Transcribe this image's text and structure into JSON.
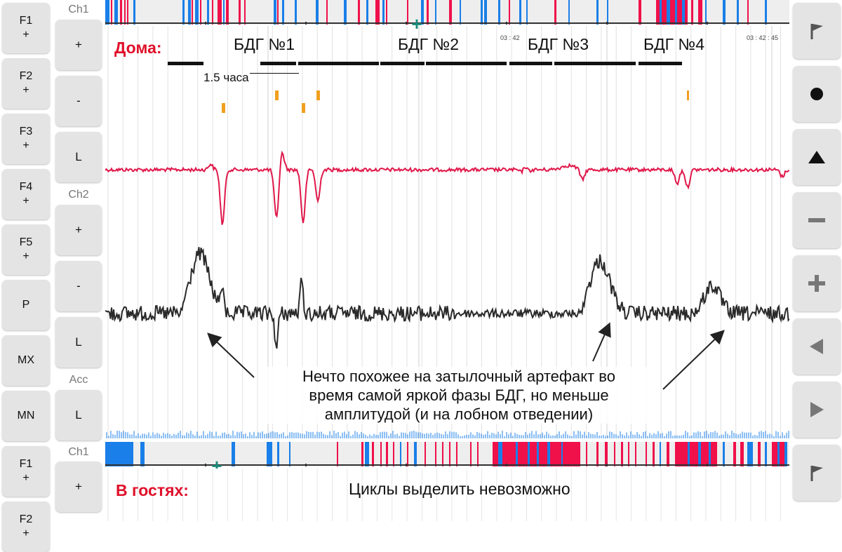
{
  "left_buttons": [
    "F1\n+",
    "F2\n+",
    "F3\n+",
    "F4\n+",
    "F5\n+",
    "P",
    "MX",
    "MN",
    "F1\n+",
    "F2\n+"
  ],
  "channels": {
    "ch1_label": "Ch1",
    "ch2_label": "Ch2",
    "acc_label": "Acc",
    "ch1b_label": "Ch1",
    "plus": "+",
    "minus": "-",
    "l": "L"
  },
  "right_buttons": [
    "flag-icon",
    "record-dot-icon",
    "triangle-up-icon",
    "minus-icon",
    "plus-icon",
    "triangle-left-icon",
    "triangle-right-icon",
    "flag-icon"
  ],
  "overlay": {
    "home_label": "Дома:",
    "bdg1": "БДГ №1",
    "bdg2": "БДГ №2",
    "bdg3": "БДГ №3",
    "bdg4": "БДГ №4",
    "duration": "1.5 часа",
    "time1": "03 : 42",
    "time2": "03 : 42 : 45",
    "annotation": "Нечто похожее на затылочный артефакт во\nвремя самой яркой фазы БДГ, но меньше\nамплитудой (и на лобном отведении)",
    "away_label": "В гостях:",
    "away_text": "Циклы выделить невозможно"
  },
  "colors": {
    "red_trace": "#e0184a",
    "black_trace": "#2a2a2a",
    "stripe_blue": "#1a7fe8",
    "stripe_red": "#f0104a",
    "marker_orange": "#f0a020",
    "accent_red": "#e0102a"
  }
}
